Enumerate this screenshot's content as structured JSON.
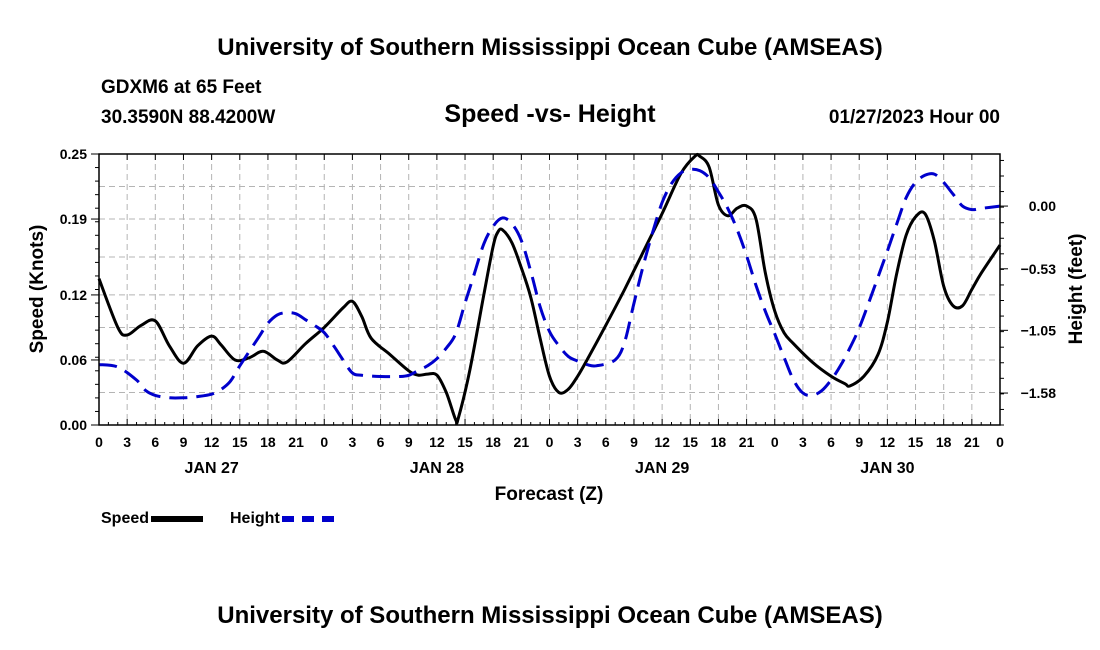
{
  "page": {
    "title_top": "University of Southern Mississippi Ocean Cube (AMSEAS)",
    "title_bottom": "University of Southern Mississippi Ocean Cube (AMSEAS)",
    "station": "GDXM6 at 65 Feet",
    "location": "30.3590N  88.4200W",
    "datetime": "01/27/2023 Hour 00"
  },
  "colors": {
    "speed": "#000000",
    "height": "#0000cc",
    "grid": "#b4b4b4"
  },
  "chart_data": {
    "type": "line",
    "title": "Speed -vs- Height",
    "xlabel": "Forecast (Z)",
    "ylabel": "Speed (Knots)",
    "ylabel_right": "Height (feet)",
    "x_unit": "hours since 01/27 00Z",
    "xlim": [
      0,
      96
    ],
    "ylim": [
      0,
      0.25
    ],
    "ylim_right": [
      -1.85,
      0.44
    ],
    "yticks": [
      0,
      0.06,
      0.12,
      0.19,
      0.25
    ],
    "ytick_labels": [
      "0.00",
      "0.06",
      "0.12",
      "0.19",
      "0.25"
    ],
    "yticks_right": [
      0.0,
      -0.53,
      -1.05,
      -1.58
    ],
    "ytick_labels_right": [
      "0.00",
      "−0.53",
      "−1.05",
      "−1.58"
    ],
    "xtick_labels": [
      "0",
      "3",
      "6",
      "9",
      "12",
      "15",
      "18",
      "21",
      "0",
      "3",
      "6",
      "9",
      "12",
      "15",
      "18",
      "21",
      "0",
      "3",
      "6",
      "9",
      "12",
      "15",
      "18",
      "21",
      "0",
      "3",
      "6",
      "9",
      "12",
      "15",
      "18",
      "21",
      "0"
    ],
    "day_labels": [
      {
        "label": "JAN 27",
        "hour": 12
      },
      {
        "label": "JAN 28",
        "hour": 36
      },
      {
        "label": "JAN 29",
        "hour": 60
      },
      {
        "label": "JAN 30",
        "hour": 84
      }
    ],
    "series": [
      {
        "name": "Speed",
        "axis": "left",
        "style": "solid",
        "points": [
          [
            0,
            0.135
          ],
          [
            2,
            0.09
          ],
          [
            3,
            0.083
          ],
          [
            4.5,
            0.092
          ],
          [
            6,
            0.096
          ],
          [
            7.5,
            0.073
          ],
          [
            9,
            0.057
          ],
          [
            10.5,
            0.073
          ],
          [
            12,
            0.082
          ],
          [
            13,
            0.074
          ],
          [
            14.5,
            0.06
          ],
          [
            16,
            0.062
          ],
          [
            17.5,
            0.068
          ],
          [
            19,
            0.06
          ],
          [
            20,
            0.058
          ],
          [
            22,
            0.075
          ],
          [
            24,
            0.09
          ],
          [
            26,
            0.108
          ],
          [
            27,
            0.114
          ],
          [
            28,
            0.1
          ],
          [
            29,
            0.08
          ],
          [
            31,
            0.065
          ],
          [
            33,
            0.05
          ],
          [
            34,
            0.046
          ],
          [
            35,
            0.047
          ],
          [
            36,
            0.046
          ],
          [
            37,
            0.03
          ],
          [
            38,
            0.005
          ],
          [
            38.3,
            0.007
          ],
          [
            39.5,
            0.05
          ],
          [
            41,
            0.12
          ],
          [
            42,
            0.165
          ],
          [
            42.5,
            0.178
          ],
          [
            43,
            0.18
          ],
          [
            44,
            0.168
          ],
          [
            45,
            0.145
          ],
          [
            46,
            0.118
          ],
          [
            47,
            0.08
          ],
          [
            48,
            0.045
          ],
          [
            49,
            0.03
          ],
          [
            50,
            0.033
          ],
          [
            51,
            0.045
          ],
          [
            52,
            0.06
          ],
          [
            54,
            0.092
          ],
          [
            56,
            0.125
          ],
          [
            58,
            0.16
          ],
          [
            60,
            0.195
          ],
          [
            62,
            0.232
          ],
          [
            63.5,
            0.248
          ],
          [
            64,
            0.248
          ],
          [
            65,
            0.238
          ],
          [
            66,
            0.203
          ],
          [
            67,
            0.193
          ],
          [
            68,
            0.2
          ],
          [
            69,
            0.202
          ],
          [
            70,
            0.19
          ],
          [
            71,
            0.14
          ],
          [
            72,
            0.105
          ],
          [
            73,
            0.085
          ],
          [
            74,
            0.075
          ],
          [
            76,
            0.058
          ],
          [
            78,
            0.045
          ],
          [
            79.5,
            0.038
          ],
          [
            80,
            0.036
          ],
          [
            81.5,
            0.045
          ],
          [
            83,
            0.065
          ],
          [
            84,
            0.095
          ],
          [
            85,
            0.14
          ],
          [
            86,
            0.175
          ],
          [
            87,
            0.192
          ],
          [
            88,
            0.195
          ],
          [
            89,
            0.17
          ],
          [
            90,
            0.128
          ],
          [
            91,
            0.11
          ],
          [
            92,
            0.11
          ],
          [
            93,
            0.125
          ],
          [
            94,
            0.14
          ],
          [
            96,
            0.166
          ]
        ]
      },
      {
        "name": "Height",
        "axis": "right",
        "style": "dashed",
        "points": [
          [
            0,
            -1.34
          ],
          [
            2,
            -1.36
          ],
          [
            4,
            -1.47
          ],
          [
            5,
            -1.56
          ],
          [
            6,
            -1.6
          ],
          [
            7.5,
            -1.62
          ],
          [
            9,
            -1.62
          ],
          [
            10.5,
            -1.61
          ],
          [
            12,
            -1.59
          ],
          [
            13,
            -1.55
          ],
          [
            14,
            -1.48
          ],
          [
            15,
            -1.35
          ],
          [
            17,
            -1.11
          ],
          [
            18,
            -0.99
          ],
          [
            19,
            -0.92
          ],
          [
            20,
            -0.9
          ],
          [
            21,
            -0.91
          ],
          [
            22,
            -0.96
          ],
          [
            23,
            -1.01
          ],
          [
            24,
            -1.07
          ],
          [
            25,
            -1.18
          ],
          [
            26,
            -1.3
          ],
          [
            27,
            -1.41
          ],
          [
            28,
            -1.43
          ],
          [
            30,
            -1.44
          ],
          [
            32,
            -1.44
          ],
          [
            33,
            -1.43
          ],
          [
            34,
            -1.39
          ],
          [
            35,
            -1.35
          ],
          [
            36,
            -1.29
          ],
          [
            37,
            -1.2
          ],
          [
            38,
            -1.08
          ],
          [
            39,
            -0.82
          ],
          [
            40,
            -0.57
          ],
          [
            41,
            -0.32
          ],
          [
            42,
            -0.17
          ],
          [
            43,
            -0.1
          ],
          [
            44,
            -0.15
          ],
          [
            45,
            -0.29
          ],
          [
            46,
            -0.55
          ],
          [
            47,
            -0.85
          ],
          [
            48,
            -1.06
          ],
          [
            49,
            -1.18
          ],
          [
            50,
            -1.27
          ],
          [
            51,
            -1.31
          ],
          [
            52,
            -1.34
          ],
          [
            53,
            -1.35
          ],
          [
            55,
            -1.3
          ],
          [
            56,
            -1.15
          ],
          [
            57,
            -0.82
          ],
          [
            58,
            -0.5
          ],
          [
            59,
            -0.22
          ],
          [
            60,
            0.03
          ],
          [
            61,
            0.19
          ],
          [
            62,
            0.28
          ],
          [
            63,
            0.31
          ],
          [
            64,
            0.3
          ],
          [
            65,
            0.24
          ],
          [
            66,
            0.12
          ],
          [
            67,
            -0.02
          ],
          [
            68,
            -0.2
          ],
          [
            69,
            -0.42
          ],
          [
            70,
            -0.67
          ],
          [
            71,
            -0.89
          ],
          [
            72,
            -1.08
          ],
          [
            73,
            -1.28
          ],
          [
            74,
            -1.47
          ],
          [
            75,
            -1.58
          ],
          [
            76,
            -1.6
          ],
          [
            77,
            -1.56
          ],
          [
            78,
            -1.47
          ],
          [
            79,
            -1.35
          ],
          [
            80,
            -1.2
          ],
          [
            81,
            -1.03
          ],
          [
            82,
            -0.82
          ],
          [
            83,
            -0.6
          ],
          [
            84,
            -0.38
          ],
          [
            85,
            -0.15
          ],
          [
            86,
            0.07
          ],
          [
            87,
            0.2
          ],
          [
            88,
            0.26
          ],
          [
            89,
            0.27
          ],
          [
            90,
            0.2
          ],
          [
            91,
            0.1
          ],
          [
            92,
            0.0
          ],
          [
            93,
            -0.03
          ],
          [
            94,
            -0.02
          ],
          [
            96,
            0.0
          ]
        ]
      }
    ],
    "legend": [
      {
        "label": "Speed",
        "series": "Speed"
      },
      {
        "label": "Height",
        "series": "Height"
      }
    ]
  }
}
